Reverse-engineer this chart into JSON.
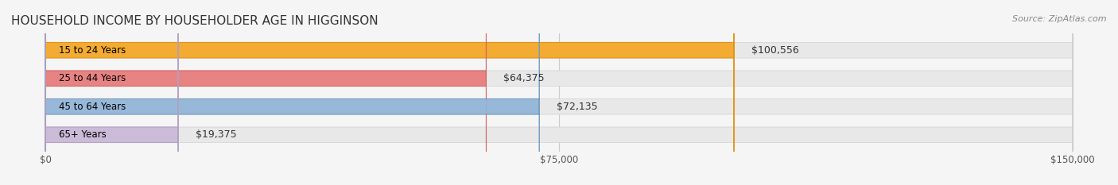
{
  "title": "HOUSEHOLD INCOME BY HOUSEHOLDER AGE IN HIGGINSON",
  "source": "Source: ZipAtlas.com",
  "categories": [
    "15 to 24 Years",
    "25 to 44 Years",
    "45 to 64 Years",
    "65+ Years"
  ],
  "values": [
    100556,
    64375,
    72135,
    19375
  ],
  "labels": [
    "$100,556",
    "$64,375",
    "$72,135",
    "$19,375"
  ],
  "bar_colors": [
    "#F5A623",
    "#E87B7B",
    "#91B4D9",
    "#C9B8D8"
  ],
  "bar_edge_colors": [
    "#E09010",
    "#D06060",
    "#7099C0",
    "#B0A0C0"
  ],
  "background_color": "#f5f5f5",
  "bar_bg_color": "#e8e8e8",
  "xlim": [
    0,
    150000
  ],
  "xticks": [
    0,
    75000,
    150000
  ],
  "xticklabels": [
    "$0",
    "$75,000",
    "$150,000"
  ],
  "title_fontsize": 11,
  "source_fontsize": 8,
  "bar_height": 0.55,
  "label_fontsize": 9,
  "category_fontsize": 8.5
}
